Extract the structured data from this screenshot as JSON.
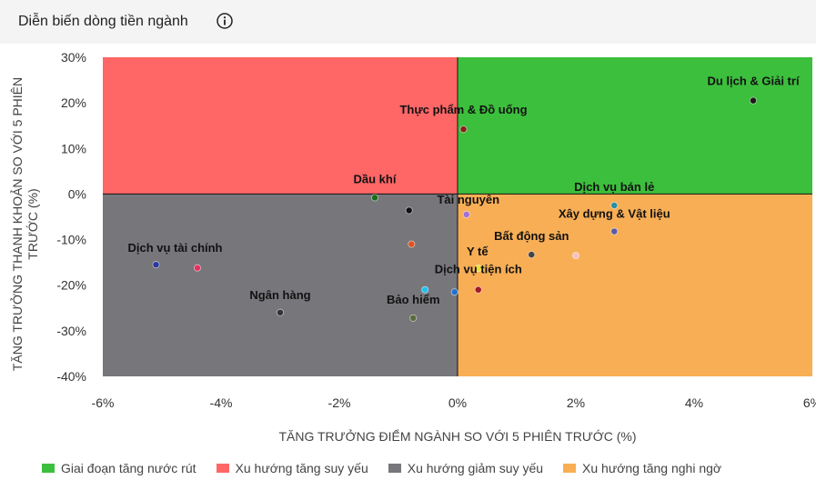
{
  "header": {
    "title": "Diễn biến dòng tiền ngành",
    "info_icon": "info-circle-icon"
  },
  "legend": [
    {
      "label": "Giai đoạn tăng nước rút",
      "color": "#3cbf3c"
    },
    {
      "label": "Xu hướng tăng suy yếu",
      "color": "#ff6666"
    },
    {
      "label": "Xu hướng giảm suy yếu",
      "color": "#77767b"
    },
    {
      "label": "Xu hướng tăng nghi ngờ",
      "color": "#f8ae55"
    }
  ],
  "chart_data": {
    "type": "scatter",
    "xlabel": "TĂNG TRƯỞNG ĐIỂM NGÀNH SO VỚI 5 PHIÊN TRƯỚC (%)",
    "ylabel": "TĂNG TRƯỞNG THANH KHOẢN SO VỚI 5 PHIÊN TRƯỚC (%)",
    "xlim": [
      -6,
      6
    ],
    "ylim": [
      -40,
      30
    ],
    "x_ticks": [
      "-6%",
      "-4%",
      "-2%",
      "0%",
      "2%",
      "4%",
      "6%"
    ],
    "x_tick_values": [
      -6,
      -4,
      -2,
      0,
      2,
      4,
      6
    ],
    "y_ticks": [
      "30%",
      "20%",
      "10%",
      "0%",
      "-10%",
      "-20%",
      "-30%",
      "-40%"
    ],
    "y_tick_values": [
      30,
      20,
      10,
      0,
      -10,
      -20,
      -30,
      -40
    ],
    "quadrants": {
      "top_right": "#3cbf3c",
      "top_left": "#ff6666",
      "bottom_left": "#77767b",
      "bottom_right": "#f8ae55"
    },
    "points": [
      {
        "x": 5.0,
        "y": 20.5,
        "label": "Du lịch & Giải trí",
        "color": "#1a1a1a"
      },
      {
        "x": 0.1,
        "y": 14.2,
        "label": "Thực phẩm & Đồ uống",
        "color": "#8b1a1a"
      },
      {
        "x": -1.4,
        "y": -0.8,
        "label": "Dầu khí",
        "color": "#1a6b1a"
      },
      {
        "x": 2.65,
        "y": -2.5,
        "label": "Dịch vụ bán lẻ",
        "color": "#2a8fa0"
      },
      {
        "x": 0.15,
        "y": -4.5,
        "label": "Tài nguyên",
        "color": "#a070d8"
      },
      {
        "x": 2.65,
        "y": -8.2,
        "label": "Xây dựng & Vật liệu",
        "color": "#5a5aa8"
      },
      {
        "x": 1.25,
        "y": -13.3,
        "label": "Bất động sản",
        "color": "#444444"
      },
      {
        "x": 2.0,
        "y": -13.5,
        "label": "",
        "color": "#f4c0c0"
      },
      {
        "x": 0.35,
        "y": -16.3,
        "label": "Y tế",
        "color": "#e8e030"
      },
      {
        "x": 0.35,
        "y": -21.0,
        "label": "Dịch vụ tiện ích",
        "color": "#a01a2a"
      },
      {
        "x": -5.1,
        "y": -15.5,
        "label": "Dịch vụ tài chính",
        "color": "#2a3a9a"
      },
      {
        "x": -4.4,
        "y": -16.2,
        "label": "",
        "color": "#e83060"
      },
      {
        "x": -0.55,
        "y": -21.0,
        "label": "",
        "color": "#20c0f0"
      },
      {
        "x": -0.05,
        "y": -21.5,
        "label": "",
        "color": "#2070d0"
      },
      {
        "x": -0.75,
        "y": -27.2,
        "label": "Bảo hiểm",
        "color": "#5a6a3a"
      },
      {
        "x": -3.0,
        "y": -26.0,
        "label": "Ngân hàng",
        "color": "#333333"
      },
      {
        "x": -0.82,
        "y": -3.6,
        "label": "",
        "color": "#111111"
      },
      {
        "x": -0.78,
        "y": -11.0,
        "label": "",
        "color": "#e05020"
      }
    ]
  }
}
